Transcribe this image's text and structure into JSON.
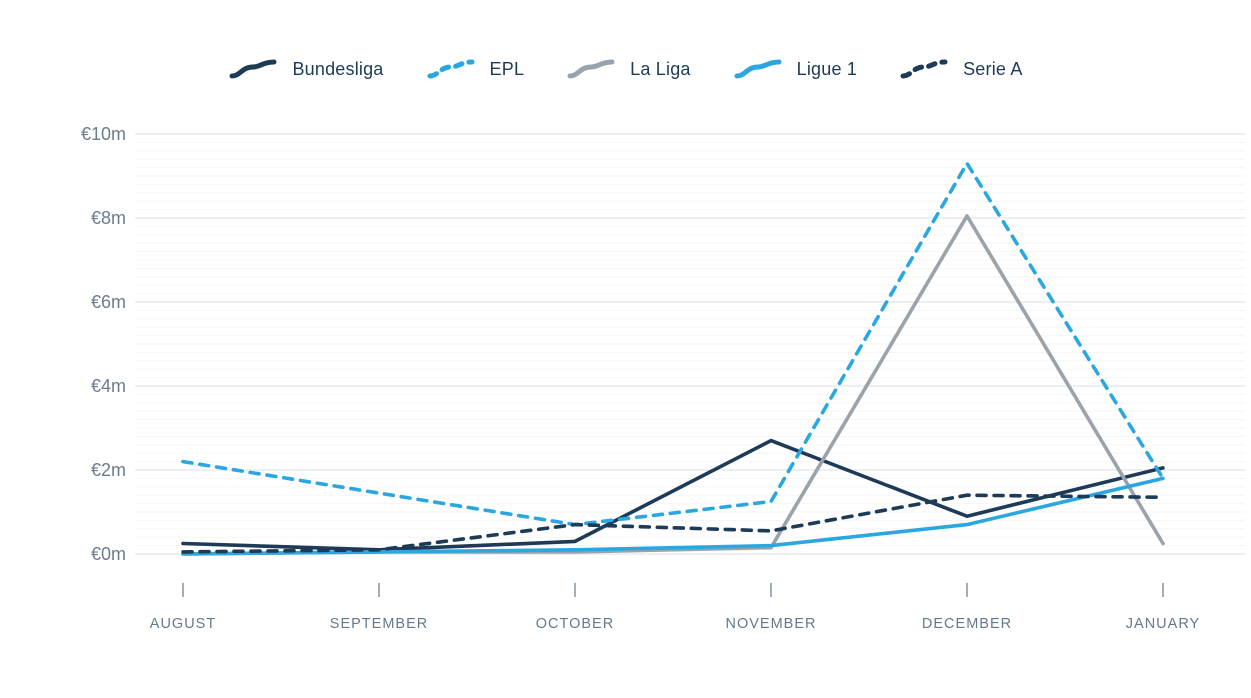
{
  "legend": {
    "items": [
      "Bundesliga",
      "EPL",
      "La Liga",
      "Ligue 1",
      "Serie A"
    ]
  },
  "chart_data": {
    "type": "line",
    "title": "",
    "xlabel": "",
    "ylabel": "",
    "x_categories": [
      "AUGUST",
      "SEPTEMBER",
      "OCTOBER",
      "NOVEMBER",
      "DECEMBER",
      "JANUARY"
    ],
    "y_axis": {
      "unit_prefix": "€",
      "unit_suffix": "m",
      "tick_values": [
        10,
        8,
        6,
        4,
        2,
        0
      ],
      "tick_labels": [
        "€10m",
        "€8m",
        "€6m",
        "€4m",
        "€2m",
        "€0m"
      ],
      "ylim": [
        0,
        10
      ]
    },
    "grid": {
      "major_step_m": 2,
      "minor_step_m": 0.2,
      "horizontal_only": true
    },
    "legend_position": "top-center",
    "series": [
      {
        "name": "Bundesliga",
        "color": "#1d3a57",
        "style": "solid",
        "values": [
          0.25,
          0.1,
          0.3,
          2.7,
          0.9,
          2.05
        ]
      },
      {
        "name": "EPL",
        "color": "#2aa7e0",
        "style": "dashed",
        "values": [
          2.2,
          1.45,
          0.7,
          1.25,
          9.3,
          1.8
        ]
      },
      {
        "name": "La Liga",
        "color": "#9aa2ab",
        "style": "solid",
        "values": [
          0.0,
          0.05,
          0.05,
          0.15,
          8.05,
          0.25
        ]
      },
      {
        "name": "Ligue 1",
        "color": "#2aa7e0",
        "style": "solid",
        "values": [
          0.0,
          0.05,
          0.1,
          0.2,
          0.7,
          1.8
        ]
      },
      {
        "name": "Serie A",
        "color": "#1d3a57",
        "style": "dashed",
        "values": [
          0.05,
          0.1,
          0.7,
          0.55,
          1.4,
          1.35
        ]
      }
    ],
    "colors": {
      "grid_major": "#e2e6ea",
      "grid_minor": "#f4f5f7",
      "tick_mark": "#8c99a8",
      "axis_text": "#6b7c90",
      "month_text": "#66788c"
    }
  }
}
